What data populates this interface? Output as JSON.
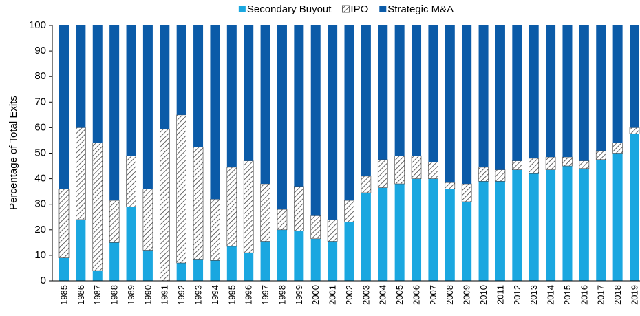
{
  "chart_data": {
    "type": "stacked_bar",
    "y_label": "Percentage of Total Exits",
    "categories": [
      "1985",
      "1986",
      "1987",
      "1988",
      "1989",
      "1990",
      "1991",
      "1992",
      "1993",
      "1994",
      "1995",
      "1996",
      "1997",
      "1998",
      "1999",
      "2000",
      "2001",
      "2002",
      "2003",
      "2004",
      "2005",
      "2006",
      "2007",
      "2008",
      "2009",
      "2010",
      "2011",
      "2012",
      "2013",
      "2014",
      "2015",
      "2016",
      "2017",
      "2018",
      "2019"
    ],
    "series": [
      {
        "name": "Secondary Buyout",
        "color": "#1aa7e0",
        "values": [
          9,
          24,
          4,
          15,
          29,
          12,
          0,
          7,
          8.5,
          8,
          13.5,
          11,
          15.5,
          20,
          19.5,
          16.5,
          15.5,
          23,
          34.5,
          36.5,
          38,
          40,
          40,
          36,
          31,
          39,
          39,
          43.5,
          42,
          43.5,
          45,
          44,
          47.5,
          50,
          57.5
        ]
      },
      {
        "name": "IPO",
        "color": "#404040",
        "pattern": "hatch",
        "values": [
          27,
          36,
          50,
          16.5,
          20,
          24,
          59.5,
          58,
          44,
          24,
          31,
          36,
          22.5,
          8,
          17.5,
          9,
          8.5,
          8.5,
          6.5,
          11,
          11,
          9,
          6.5,
          2.5,
          7,
          5.5,
          4.5,
          3.5,
          6,
          5,
          3.5,
          3,
          3.5,
          4,
          2.5
        ]
      },
      {
        "name": "Strategic M&A",
        "color": "#0b5ba8",
        "values": [
          64,
          40,
          46,
          68.5,
          51,
          64,
          40.5,
          35,
          47.5,
          68,
          55.5,
          53,
          62,
          72,
          63,
          74.5,
          76,
          68.5,
          59,
          52.5,
          51,
          51,
          53.5,
          61.5,
          62,
          55.5,
          56.5,
          53,
          52,
          51.5,
          51.5,
          53,
          49,
          46,
          40
        ]
      }
    ],
    "ylim": [
      0,
      100
    ],
    "yticks": [
      0,
      10,
      20,
      30,
      40,
      50,
      60,
      70,
      80,
      90,
      100
    ],
    "legend": "top"
  }
}
